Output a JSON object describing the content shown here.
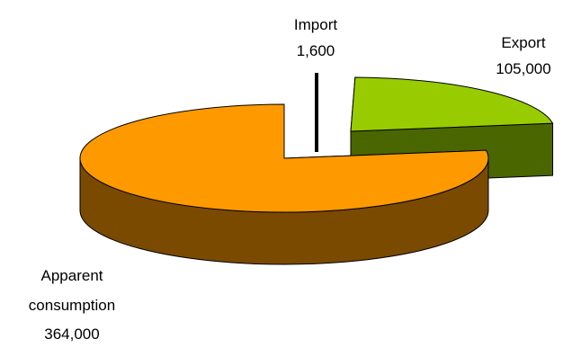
{
  "chart_data": {
    "type": "pie",
    "style": "3d-exploded",
    "slices": [
      {
        "name": "Import",
        "label_line1": "Import",
        "value": 1600,
        "value_label": "1,600",
        "color": "#000000",
        "side_color": "#000000"
      },
      {
        "name": "Export",
        "label_line1": "Export",
        "value": 105000,
        "value_label": "105,000",
        "color": "#99CC00",
        "side_color": "#4A6600"
      },
      {
        "name": "Apparent consumption",
        "label_line1": "Apparent",
        "label_line2": "consumption",
        "value": 364000,
        "value_label": "364,000",
        "color": "#FF9900",
        "side_color": "#7A4A00"
      }
    ],
    "legend": "none",
    "title": ""
  }
}
